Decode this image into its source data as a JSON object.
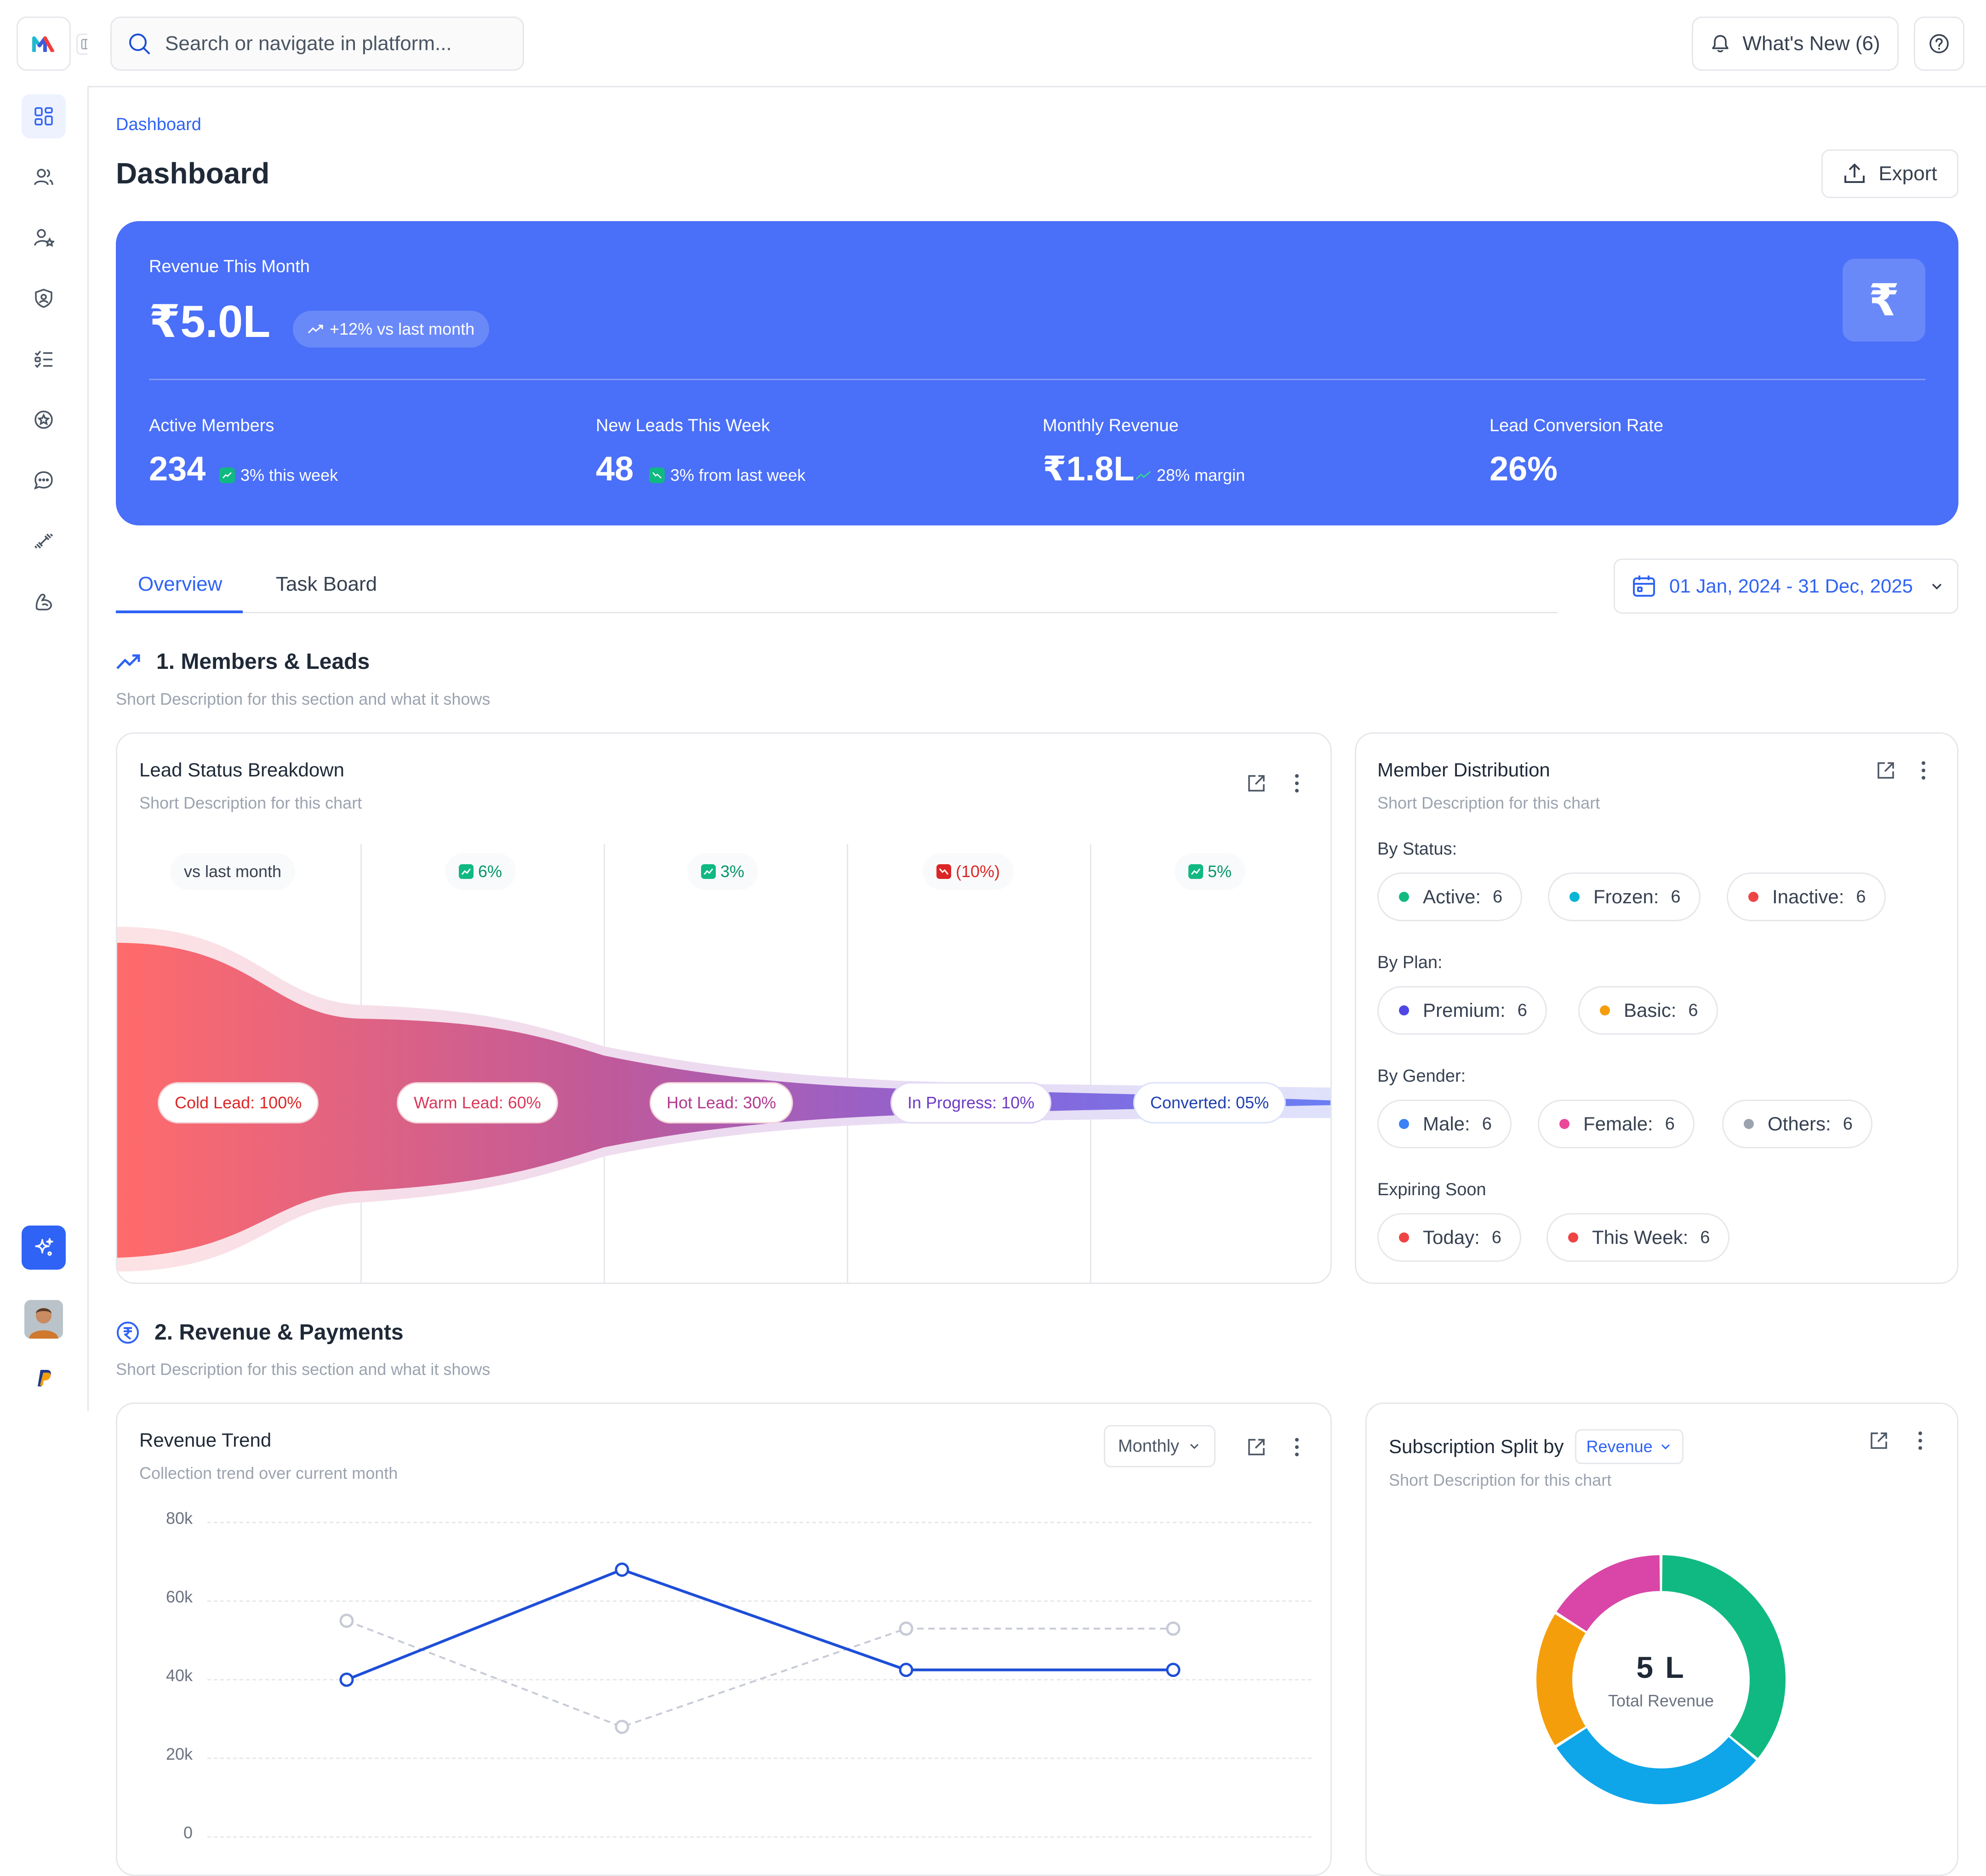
{
  "header": {
    "search_placeholder": "Search or navigate in platform...",
    "whats_new": "What's New (6)"
  },
  "breadcrumb": "Dashboard",
  "page_title": "Dashboard",
  "export_label": "Export",
  "banner": {
    "revenue_label": "Revenue This Month",
    "revenue_value": "₹5.0L",
    "revenue_change": "+12% vs last month",
    "currency_symbol": "₹",
    "stats": [
      {
        "label": "Active Members",
        "value": "234",
        "change": "3% this week"
      },
      {
        "label": "New Leads This Week",
        "value": "48",
        "change": "3% from last week"
      },
      {
        "label": "Monthly Revenue",
        "value": "₹1.8L",
        "change": "28% margin"
      },
      {
        "label": "Lead Conversion Rate",
        "value": "26%",
        "change": ""
      }
    ]
  },
  "tabs": [
    {
      "label": "Overview",
      "active": true
    },
    {
      "label": "Task Board",
      "active": false
    }
  ],
  "date_range": "01 Jan, 2024 - 31 Dec, 2025",
  "section1": {
    "title": "1. Members & Leads",
    "description": "Short Description for this section and what it shows"
  },
  "lead_status": {
    "title": "Lead Status Breakdown",
    "description": "Short Description for this chart",
    "comparisons": [
      "vs last month",
      "6%",
      "3%",
      "(10%)",
      "5%"
    ],
    "stages": [
      {
        "label": "Cold Lead:",
        "value": "100%"
      },
      {
        "label": "Warm Lead:",
        "value": "60%"
      },
      {
        "label": "Hot Lead:",
        "value": "30%"
      },
      {
        "label": "In Progress:",
        "value": "10%"
      },
      {
        "label": "Converted:",
        "value": "05%"
      }
    ]
  },
  "member_distribution": {
    "title": "Member Distribution",
    "description": "Short Description for this chart",
    "groups": [
      {
        "label": "By Status:",
        "items": [
          {
            "name": "Active:",
            "count": "6",
            "color": "#10b981"
          },
          {
            "name": "Frozen:",
            "count": "6",
            "color": "#06b6d4"
          },
          {
            "name": "Inactive:",
            "count": "6",
            "color": "#ef4444"
          }
        ]
      },
      {
        "label": "By Plan:",
        "items": [
          {
            "name": "Premium:",
            "count": "6",
            "color": "#4f46e5"
          },
          {
            "name": "Basic:",
            "count": "6",
            "color": "#f59e0b"
          }
        ]
      },
      {
        "label": "By Gender:",
        "items": [
          {
            "name": "Male:",
            "count": "6",
            "color": "#3b82f6"
          },
          {
            "name": "Female:",
            "count": "6",
            "color": "#ec4899"
          },
          {
            "name": "Others:",
            "count": "6",
            "color": "#9ca3af"
          }
        ]
      },
      {
        "label": "Expiring Soon",
        "items": [
          {
            "name": "Today:",
            "count": "6",
            "color": "#ef4444"
          },
          {
            "name": "This Week:",
            "count": "6",
            "color": "#ef4444"
          }
        ]
      }
    ]
  },
  "section2": {
    "title": "2. Revenue & Payments",
    "description": "Short Description for this section and what it shows"
  },
  "revenue_trend": {
    "title": "Revenue Trend",
    "description": "Collection trend over current month",
    "period": "Monthly"
  },
  "subscription_split": {
    "title": "Subscription Split by",
    "metric": "Revenue",
    "description": "Short Description for this chart",
    "center_value": "5 L",
    "center_label": "Total Revenue"
  },
  "chart_data": [
    {
      "type": "line",
      "x": [
        1,
        2,
        3,
        4
      ],
      "series": [
        {
          "values": [
            40000,
            68000,
            42500,
            42500
          ],
          "color": "#1d4ed8"
        },
        {
          "values": [
            55000,
            28000,
            53000,
            53000
          ],
          "color": "#c7cbd6"
        }
      ],
      "yticks": [
        "0",
        "20k",
        "40k",
        "60k",
        "80k"
      ],
      "ylim": [
        0,
        80000
      ],
      "grid": true
    },
    {
      "type": "pie",
      "slices": [
        {
          "value": 36,
          "color": "#10b981"
        },
        {
          "value": 30,
          "color": "#0ea5e9"
        },
        {
          "value": 18,
          "color": "#f59e0b"
        },
        {
          "value": 16,
          "color": "#d946a8"
        }
      ]
    }
  ]
}
